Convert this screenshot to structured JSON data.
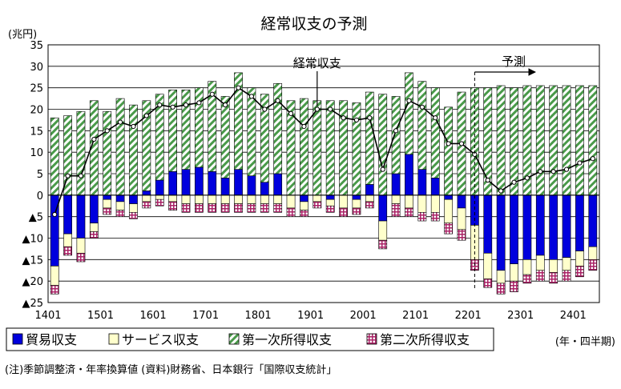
{
  "chart_data": {
    "type": "bar",
    "title": "経常収支の予測",
    "ylabel": "(兆円)",
    "xlabel": "(年・四半期)",
    "ylim": [
      -25,
      35
    ],
    "y_ticks": [
      {
        "v": 35,
        "label": "35"
      },
      {
        "v": 30,
        "label": "30"
      },
      {
        "v": 25,
        "label": "25"
      },
      {
        "v": 20,
        "label": "20"
      },
      {
        "v": 15,
        "label": "15"
      },
      {
        "v": 10,
        "label": "10"
      },
      {
        "v": 5,
        "label": "5"
      },
      {
        "v": 0,
        "label": "0"
      },
      {
        "v": -5,
        "label": "▲5"
      },
      {
        "v": -10,
        "label": "▲10"
      },
      {
        "v": -15,
        "label": "▲15"
      },
      {
        "v": -20,
        "label": "▲20"
      },
      {
        "v": -25,
        "label": "▲25"
      }
    ],
    "x_tick_labels": [
      {
        "index": 0,
        "label": "1401"
      },
      {
        "index": 4,
        "label": "1501"
      },
      {
        "index": 8,
        "label": "1601"
      },
      {
        "index": 12,
        "label": "1701"
      },
      {
        "index": 16,
        "label": "1801"
      },
      {
        "index": 20,
        "label": "1901"
      },
      {
        "index": 24,
        "label": "2001"
      },
      {
        "index": 28,
        "label": "2101"
      },
      {
        "index": 32,
        "label": "2201"
      },
      {
        "index": 36,
        "label": "2301"
      },
      {
        "index": 40,
        "label": "2401"
      }
    ],
    "colors": {
      "trade": "#0000dd",
      "services": "#ffffcc",
      "primary": "#4a9a4a",
      "secondary": "#aa2266",
      "line": "#000000"
    },
    "series": [
      {
        "name": "貿易収支",
        "key": "trade",
        "pattern": "solid",
        "values": [
          -16.5,
          -9,
          -10,
          -6.5,
          -1,
          -1.5,
          -2,
          1,
          3.5,
          5.5,
          6,
          6.5,
          5.5,
          4,
          6,
          4.5,
          3,
          5,
          0,
          -1.5,
          0,
          -1,
          0,
          -1,
          2.5,
          -6,
          5,
          9.5,
          6,
          4,
          -1,
          -3,
          -7,
          -13.5,
          -17.5,
          -16,
          -15,
          -14,
          -15,
          -14.5,
          -13,
          -12
        ]
      },
      {
        "name": "サービス収支",
        "key": "services",
        "pattern": "solid",
        "values": [
          -4.5,
          -3,
          -3.5,
          -2,
          -2,
          -2,
          -2,
          -1.5,
          -1,
          -1.5,
          -2,
          -2,
          -2,
          -2,
          -2,
          -2,
          -2,
          -2,
          -3,
          -2,
          -1.5,
          -1.5,
          -3,
          -2,
          -1.5,
          -4.5,
          -2,
          -3,
          -4,
          -4,
          -5.5,
          -5,
          -8,
          -6,
          -3,
          -4,
          -3.5,
          -3.5,
          -3,
          -3,
          -3.5,
          -3
        ]
      },
      {
        "name": "第一次所得収支",
        "key": "primary",
        "pattern": "hatch",
        "values": [
          18,
          18.5,
          19.5,
          22,
          19.5,
          22.5,
          21,
          21,
          20,
          19,
          18.5,
          18.5,
          21,
          19,
          22.5,
          20.5,
          20.5,
          21,
          22,
          22.5,
          22,
          22,
          22,
          21.5,
          21.5,
          23.5,
          18,
          19,
          20.5,
          21,
          20.5,
          24,
          25,
          25,
          25.5,
          25,
          25.5,
          25.5,
          25.5,
          25.5,
          25.5,
          25.5
        ]
      },
      {
        "name": "第二次所得収支",
        "key": "secondary",
        "pattern": "grid",
        "values": [
          -2,
          -2,
          -2,
          -1.5,
          -1.5,
          -1.5,
          -1.5,
          -1.5,
          -1.5,
          -2,
          -2,
          -2,
          -2,
          -2,
          -2,
          -2,
          -2,
          -2,
          -2,
          -1.5,
          -1.5,
          -1.5,
          -2,
          -1.5,
          -1.5,
          -2,
          -3,
          -2,
          -2,
          -2,
          -2.5,
          -2.5,
          -2.5,
          -2,
          -2.5,
          -2.5,
          -2,
          -2.5,
          -2.5,
          -2.5,
          -2.5,
          -2.5
        ]
      },
      {
        "name": "経常収支",
        "key": "current",
        "type": "line",
        "values": [
          -4.5,
          4.5,
          4.5,
          13,
          15,
          17,
          16,
          18.5,
          21,
          20.5,
          21,
          21.5,
          23.5,
          21,
          25,
          23,
          20,
          22,
          19,
          16,
          20,
          20,
          18,
          17.5,
          18,
          6,
          15,
          22,
          20.5,
          18,
          12,
          12,
          9.5,
          3.5,
          1,
          3,
          4,
          5.5,
          5.5,
          6,
          7.5,
          8.5
        ]
      }
    ],
    "annotations": [
      {
        "text": "経常収支",
        "points_to_index": 20
      },
      {
        "text": "予測",
        "from_index": 33
      }
    ],
    "legend_position": "bottom-left"
  },
  "footnote": "(注)季節調整済・年率換算値  (資料)財務省、日本銀行「国際収支統計」"
}
